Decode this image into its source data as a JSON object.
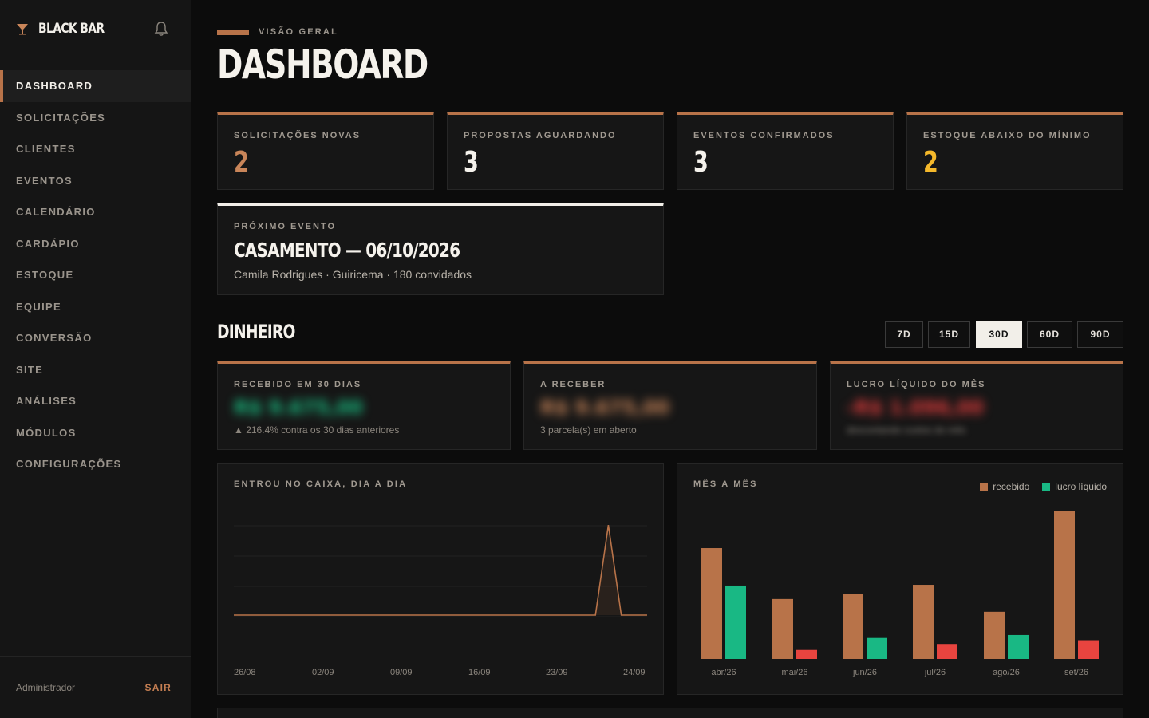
{
  "sidebar": {
    "brand": "BLACK BAR",
    "items": [
      {
        "label": "DASHBOARD",
        "active": true
      },
      {
        "label": "SOLICITAÇÕES"
      },
      {
        "label": "CLIENTES"
      },
      {
        "label": "EVENTOS"
      },
      {
        "label": "CALENDÁRIO"
      },
      {
        "label": "CARDÁPIO"
      },
      {
        "label": "ESTOQUE"
      },
      {
        "label": "EQUIPE"
      },
      {
        "label": "CONVERSÃO"
      },
      {
        "label": "SITE"
      },
      {
        "label": "ANÁLISES"
      },
      {
        "label": "MÓDULOS"
      },
      {
        "label": "CONFIGURAÇÕES"
      }
    ],
    "footer": {
      "user_role": "Administrador",
      "logout": "SAIR"
    }
  },
  "header": {
    "eyebrow": "VISÃO GERAL",
    "title": "DASHBOARD"
  },
  "kpis": [
    {
      "label": "SOLICITAÇÕES NOVAS",
      "value": "2",
      "color": "#c98559"
    },
    {
      "label": "PROPOSTAS AGUARDANDO",
      "value": "3",
      "color": "#f5f2ec"
    },
    {
      "label": "EVENTOS CONFIRMADOS",
      "value": "3",
      "color": "#f5f2ec"
    },
    {
      "label": "ESTOQUE ABAIXO DO MÍNIMO",
      "value": "2",
      "color": "#f4b82b"
    }
  ],
  "next_event": {
    "label": "PRÓXIMO EVENTO",
    "title": "CASAMENTO — 06/10/2026",
    "subtitle": "Camila Rodrigues · Guiricema · 180 convidados"
  },
  "money": {
    "section_title": "DINHEIRO",
    "ranges": [
      {
        "label": "7D"
      },
      {
        "label": "15D"
      },
      {
        "label": "30D",
        "active": true
      },
      {
        "label": "60D"
      },
      {
        "label": "90D"
      }
    ],
    "cards": [
      {
        "label": "RECEBIDO EM 30 DIAS",
        "value": "R$ 9.675,00",
        "value_color": "#19c083",
        "sub": "▲ 216.4% contra os 30 dias anteriores"
      },
      {
        "label": "A RECEBER",
        "value": "R$ 9.675,00",
        "value_color": "#c98559",
        "sub": "3 parcela(s) em aberto"
      },
      {
        "label": "LUCRO LÍQUIDO DO MÊS",
        "value": "-R$ 1.096,00",
        "value_color": "#e23c3c",
        "sub": "descontando custos do mês"
      }
    ]
  },
  "colors": {
    "accent": "#b87349",
    "positive": "#19c083",
    "negative": "#e8443f"
  },
  "chart_data": [
    {
      "type": "line",
      "title": "ENTROU NO CAIXA, DIA A DIA",
      "x_tick_labels": [
        "26/08",
        "02/09",
        "09/09",
        "16/09",
        "23/09",
        "24/09"
      ],
      "points": [
        {
          "x": "26/08",
          "y": 0
        },
        {
          "x": "23/09",
          "y": 0
        },
        {
          "x": "24/09",
          "y": 9675
        },
        {
          "x": "25/09",
          "y": 0
        },
        {
          "x": "27/09",
          "y": 0
        }
      ],
      "ylim": [
        0,
        12000
      ],
      "grid": true
    },
    {
      "type": "bar",
      "title": "MÊS A MÊS",
      "categories": [
        "abr/26",
        "mai/26",
        "jun/26",
        "jul/26",
        "ago/26",
        "set/26"
      ],
      "series": [
        {
          "name": "recebido",
          "color": "#b87349",
          "values": [
            14800,
            8000,
            8700,
            9900,
            6300,
            19700
          ]
        },
        {
          "name": "lucro líquido",
          "color": "#19b884",
          "values": [
            9800,
            -1200,
            2800,
            -2000,
            3200,
            -2500
          ]
        }
      ],
      "negative_color": "#e8443f",
      "legend": "top-right"
    }
  ]
}
